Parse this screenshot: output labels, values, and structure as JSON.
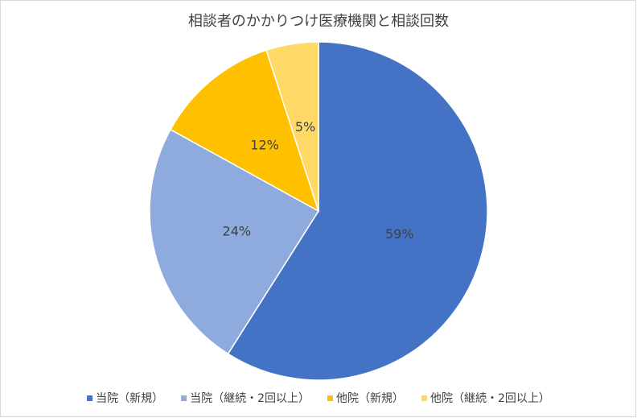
{
  "chart_data": {
    "type": "pie",
    "title": "相談者のかかりつけ医療機関と相談回数",
    "categories": [
      "当院（新規）",
      "当院（継続・2回以上）",
      "他院（新規）",
      "他院（継続・2回以上）"
    ],
    "values": [
      59,
      24,
      12,
      5
    ],
    "value_labels": [
      "59%",
      "24%",
      "12%",
      "5%"
    ],
    "colors": [
      "#4472c4",
      "#8faadc",
      "#ffc000",
      "#ffd966"
    ],
    "legend": "bottom"
  }
}
